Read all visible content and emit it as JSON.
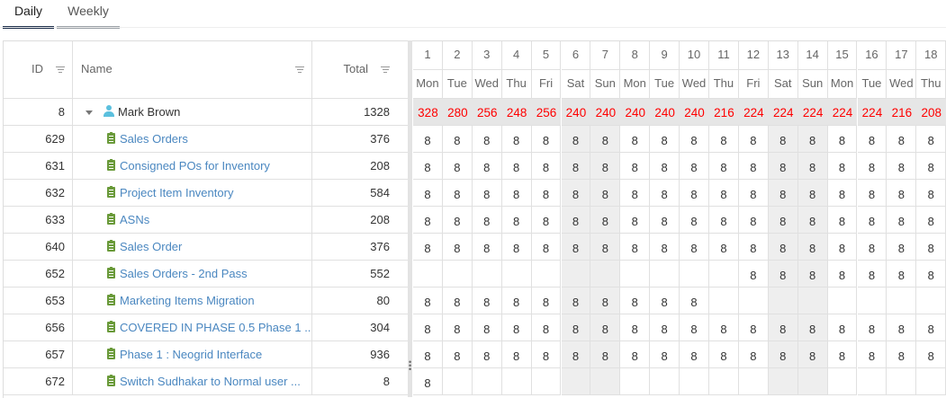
{
  "tabs": [
    {
      "label": "Daily",
      "active": true
    },
    {
      "label": "Weekly",
      "active": false
    }
  ],
  "colors": {
    "accent": "#1c2e4a",
    "link": "#4a87c0",
    "summary_value": "#ff0000",
    "task_icon": "#6a9a3a",
    "person_icon": "#5bc0de",
    "weekend_bg": "#eeeeee"
  },
  "columns": {
    "id": "ID",
    "name": "Name",
    "total": "Total"
  },
  "days": [
    {
      "num": "1",
      "dow": "Mon"
    },
    {
      "num": "2",
      "dow": "Tue"
    },
    {
      "num": "3",
      "dow": "Wed"
    },
    {
      "num": "4",
      "dow": "Thu"
    },
    {
      "num": "5",
      "dow": "Fri"
    },
    {
      "num": "6",
      "dow": "Sat"
    },
    {
      "num": "7",
      "dow": "Sun"
    },
    {
      "num": "8",
      "dow": "Mon"
    },
    {
      "num": "9",
      "dow": "Tue"
    },
    {
      "num": "10",
      "dow": "Wed"
    },
    {
      "num": "11",
      "dow": "Thu"
    },
    {
      "num": "12",
      "dow": "Fri"
    },
    {
      "num": "13",
      "dow": "Sat"
    },
    {
      "num": "14",
      "dow": "Sun"
    },
    {
      "num": "15",
      "dow": "Mon"
    },
    {
      "num": "16",
      "dow": "Tue"
    },
    {
      "num": "17",
      "dow": "Wed"
    },
    {
      "num": "18",
      "dow": "Thu"
    }
  ],
  "summary": {
    "id": "8",
    "name": "Mark Brown",
    "total": "1328",
    "values": [
      "328",
      "280",
      "256",
      "248",
      "256",
      "240",
      "240",
      "240",
      "240",
      "240",
      "216",
      "224",
      "224",
      "224",
      "224",
      "224",
      "216",
      "208"
    ]
  },
  "rows": [
    {
      "id": "629",
      "name": "Sales Orders",
      "total": "376",
      "values": [
        "8",
        "8",
        "8",
        "8",
        "8",
        "8",
        "8",
        "8",
        "8",
        "8",
        "8",
        "8",
        "8",
        "8",
        "8",
        "8",
        "8",
        "8"
      ]
    },
    {
      "id": "631",
      "name": "Consigned POs for Inventory",
      "total": "208",
      "values": [
        "8",
        "8",
        "8",
        "8",
        "8",
        "8",
        "8",
        "8",
        "8",
        "8",
        "8",
        "8",
        "8",
        "8",
        "8",
        "8",
        "8",
        "8"
      ]
    },
    {
      "id": "632",
      "name": "Project Item Inventory",
      "total": "584",
      "values": [
        "8",
        "8",
        "8",
        "8",
        "8",
        "8",
        "8",
        "8",
        "8",
        "8",
        "8",
        "8",
        "8",
        "8",
        "8",
        "8",
        "8",
        "8"
      ]
    },
    {
      "id": "633",
      "name": "ASNs",
      "total": "208",
      "values": [
        "8",
        "8",
        "8",
        "8",
        "8",
        "8",
        "8",
        "8",
        "8",
        "8",
        "8",
        "8",
        "8",
        "8",
        "8",
        "8",
        "8",
        "8"
      ]
    },
    {
      "id": "640",
      "name": "Sales Order",
      "total": "376",
      "values": [
        "8",
        "8",
        "8",
        "8",
        "8",
        "8",
        "8",
        "8",
        "8",
        "8",
        "8",
        "8",
        "8",
        "8",
        "8",
        "8",
        "8",
        "8"
      ]
    },
    {
      "id": "652",
      "name": "Sales Orders - 2nd Pass",
      "total": "552",
      "values": [
        "",
        "",
        "",
        "",
        "",
        "",
        "",
        "",
        "",
        "",
        "",
        "8",
        "8",
        "8",
        "8",
        "8",
        "8",
        "8"
      ]
    },
    {
      "id": "653",
      "name": "Marketing Items Migration",
      "total": "80",
      "values": [
        "8",
        "8",
        "8",
        "8",
        "8",
        "8",
        "8",
        "8",
        "8",
        "8",
        "",
        "",
        "",
        "",
        "",
        "",
        "",
        ""
      ]
    },
    {
      "id": "656",
      "name": "COVERED IN PHASE 0.5 Phase 1 ...",
      "total": "304",
      "values": [
        "8",
        "8",
        "8",
        "8",
        "8",
        "8",
        "8",
        "8",
        "8",
        "8",
        "8",
        "8",
        "8",
        "8",
        "8",
        "8",
        "8",
        "8"
      ]
    },
    {
      "id": "657",
      "name": "Phase 1 : Neogrid Interface",
      "total": "936",
      "values": [
        "8",
        "8",
        "8",
        "8",
        "8",
        "8",
        "8",
        "8",
        "8",
        "8",
        "8",
        "8",
        "8",
        "8",
        "8",
        "8",
        "8",
        "8"
      ]
    },
    {
      "id": "672",
      "name": "Switch Sudhakar to Normal user ...",
      "total": "8",
      "values": [
        "8",
        "",
        "",
        "",
        "",
        "",
        "",
        "",
        "",
        "",
        "",
        "",
        "",
        "",
        "",
        "",
        "",
        ""
      ]
    }
  ]
}
